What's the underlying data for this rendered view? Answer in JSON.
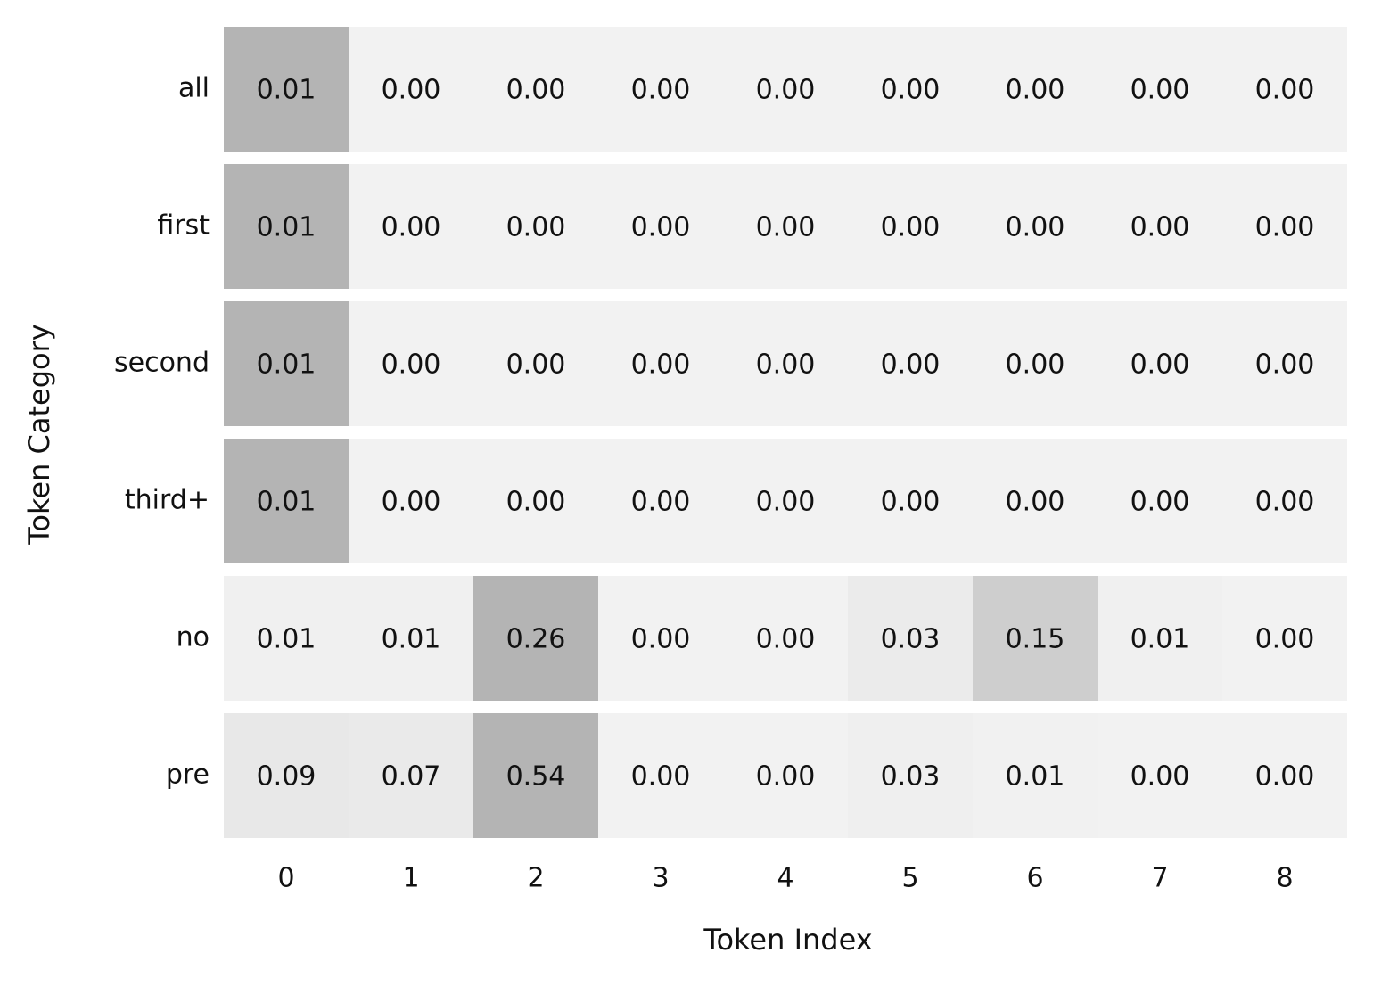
{
  "chart_data": {
    "type": "heatmap",
    "x_label": "Token Index",
    "y_label": "Token Category",
    "x": [
      0,
      1,
      2,
      3,
      4,
      5,
      6,
      7,
      8
    ],
    "color_min": "#f2f2f2",
    "color_max": "#b4b4b4",
    "normalize": "row",
    "series": [
      {
        "name": "all",
        "values": [
          0.01,
          0,
          0,
          0,
          0,
          0,
          0,
          0,
          0
        ],
        "value_labels": [
          "0.01",
          "0.00",
          "0.00",
          "0.00",
          "0.00",
          "0.00",
          "0.00",
          "0.00",
          "0.00"
        ]
      },
      {
        "name": "first",
        "values": [
          0.01,
          0,
          0,
          0,
          0,
          0,
          0,
          0,
          0
        ],
        "value_labels": [
          "0.01",
          "0.00",
          "0.00",
          "0.00",
          "0.00",
          "0.00",
          "0.00",
          "0.00",
          "0.00"
        ]
      },
      {
        "name": "second",
        "values": [
          0.01,
          0,
          0,
          0,
          0,
          0,
          0,
          0,
          0
        ],
        "value_labels": [
          "0.01",
          "0.00",
          "0.00",
          "0.00",
          "0.00",
          "0.00",
          "0.00",
          "0.00",
          "0.00"
        ]
      },
      {
        "name": "third+",
        "values": [
          0.01,
          0,
          0,
          0,
          0,
          0,
          0,
          0,
          0
        ],
        "value_labels": [
          "0.01",
          "0.00",
          "0.00",
          "0.00",
          "0.00",
          "0.00",
          "0.00",
          "0.00",
          "0.00"
        ]
      },
      {
        "name": "no",
        "values": [
          0.01,
          0.01,
          0.26,
          0,
          0,
          0.03,
          0.15,
          0.01,
          0
        ],
        "value_labels": [
          "0.01",
          "0.01",
          "0.26",
          "0.00",
          "0.00",
          "0.03",
          "0.15",
          "0.01",
          "0.00"
        ]
      },
      {
        "name": "pre",
        "values": [
          0.09,
          0.07,
          0.54,
          0,
          0,
          0.03,
          0.01,
          0,
          0
        ],
        "value_labels": [
          "0.09",
          "0.07",
          "0.54",
          "0.00",
          "0.00",
          "0.03",
          "0.01",
          "0.00",
          "0.00"
        ]
      }
    ]
  }
}
